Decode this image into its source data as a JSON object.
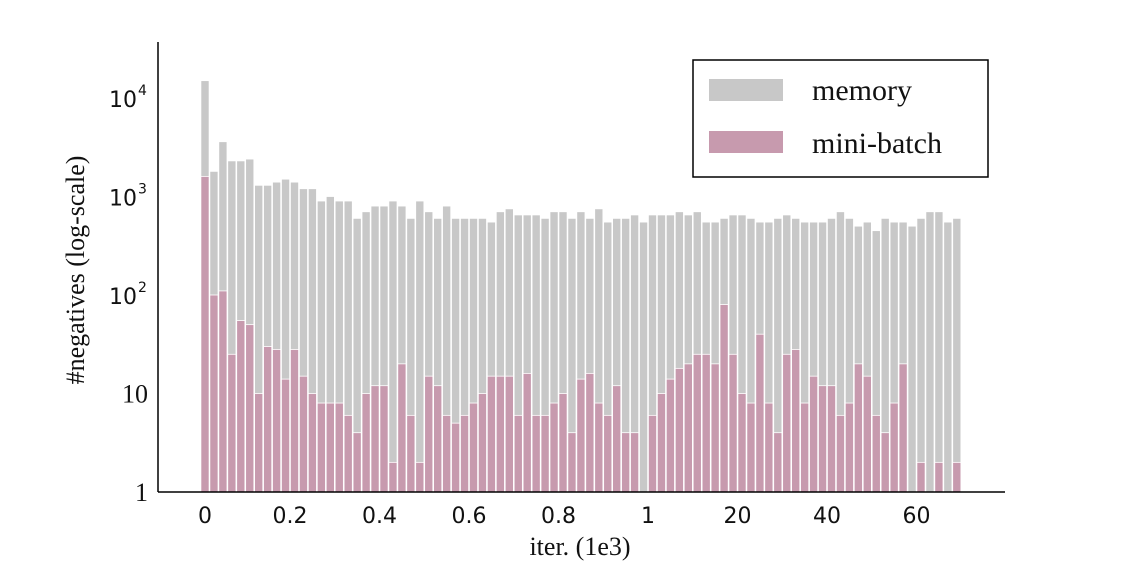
{
  "chart_data": {
    "type": "bar",
    "stacked": false,
    "yscale": "log",
    "xlabel": "iter. (1e3)",
    "ylabel": "#negatives (log-scale)",
    "ylim": [
      1,
      50000
    ],
    "y_ticks": [
      {
        "value": 1,
        "base": "1",
        "exp": ""
      },
      {
        "value": 10,
        "base": "10",
        "exp": ""
      },
      {
        "value": 100,
        "base": "10",
        "exp": "2"
      },
      {
        "value": 1000,
        "base": "10",
        "exp": "3"
      },
      {
        "value": 10000,
        "base": "10",
        "exp": "4"
      }
    ],
    "x_tick_labels": [
      {
        "label": "0",
        "bar_index": 0
      },
      {
        "label": "0.2",
        "bar_index": 9.5
      },
      {
        "label": "0.4",
        "bar_index": 19.5
      },
      {
        "label": "0.6",
        "bar_index": 29.5
      },
      {
        "label": "0.8",
        "bar_index": 39.5
      },
      {
        "label": "1",
        "bar_index": 49.5
      },
      {
        "label": "20",
        "bar_index": 59.5
      },
      {
        "label": "40",
        "bar_index": 69.5
      },
      {
        "label": "60",
        "bar_index": 79.5
      }
    ],
    "grid": false,
    "legend_position": "top-right",
    "series": [
      {
        "name": "memory",
        "color": "#c8c8c8",
        "values": [
          15000,
          1800,
          3600,
          2300,
          2300,
          2400,
          1300,
          1300,
          1400,
          1500,
          1400,
          1200,
          1200,
          900,
          1000,
          900,
          900,
          600,
          700,
          800,
          800,
          900,
          800,
          600,
          900,
          700,
          600,
          800,
          600,
          600,
          600,
          600,
          550,
          700,
          750,
          650,
          650,
          650,
          600,
          700,
          700,
          600,
          700,
          600,
          750,
          550,
          600,
          600,
          650,
          550,
          650,
          650,
          650,
          700,
          650,
          700,
          550,
          550,
          600,
          650,
          650,
          600,
          550,
          550,
          600,
          650,
          600,
          550,
          550,
          550,
          600,
          700,
          600,
          500,
          550,
          450,
          600,
          550,
          550,
          500,
          600,
          700,
          700,
          550,
          600
        ]
      },
      {
        "name": "mini-batch",
        "color": "#c79aae",
        "values": [
          1600,
          100,
          110,
          25,
          55,
          50,
          10,
          30,
          28,
          14,
          28,
          15,
          10,
          8,
          8,
          8,
          6,
          4,
          10,
          12,
          12,
          2,
          20,
          6,
          2,
          15,
          12,
          6,
          5,
          6,
          8,
          10,
          15,
          15,
          15,
          6,
          16,
          6,
          6,
          8,
          10,
          4,
          14,
          16,
          8,
          6,
          12,
          4,
          4,
          1,
          6,
          10,
          14,
          18,
          20,
          25,
          25,
          20,
          80,
          25,
          10,
          8,
          40,
          8,
          4,
          25,
          28,
          8,
          15,
          12,
          12,
          6,
          8,
          20,
          15,
          6,
          4,
          8,
          20,
          1,
          2,
          1,
          2,
          1,
          2
        ]
      }
    ]
  }
}
